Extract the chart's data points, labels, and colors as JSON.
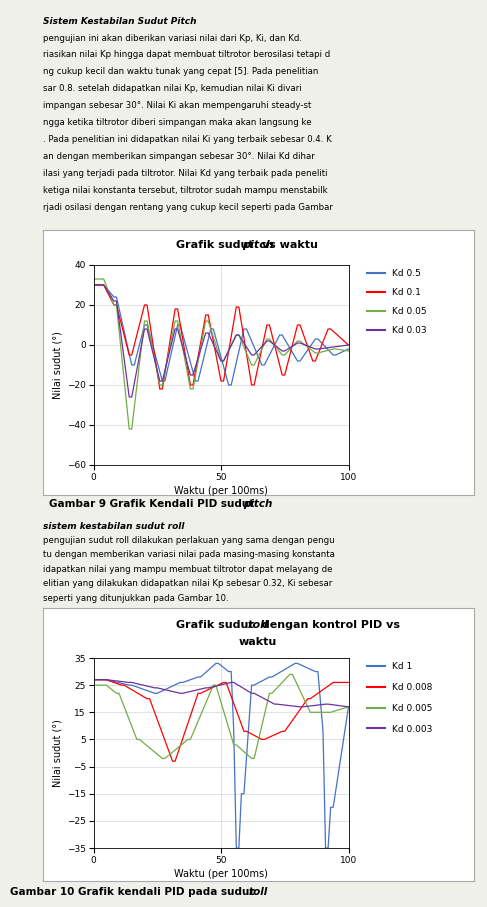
{
  "chart1": {
    "title_normal": "Grafik sudut ",
    "title_italic": "pitch",
    "title_end": " vs waktu",
    "xlabel": "Waktu (per 100ms)",
    "ylabel": "Nilai sudut (°)",
    "ylim": [
      -60,
      40
    ],
    "yticks": [
      -60,
      -40,
      -20,
      0,
      20,
      40
    ],
    "xlim": [
      0,
      100
    ],
    "xticks": [
      0,
      50,
      100
    ],
    "legend": [
      "Kd 0.5",
      "Kd 0.1",
      "Kd 0.05",
      "Kd 0.03"
    ],
    "colors": [
      "#4472C4",
      "#FF0000",
      "#70AD47",
      "#7030A0"
    ],
    "caption_normal": "Gambar 9 Grafik Kendali PID sudut ",
    "caption_italic": "pitch"
  },
  "chart2": {
    "title_line1_normal": "Grafik sudut ",
    "title_line1_italic": "roll",
    "title_line1_end": " dengan kontrol PID vs",
    "title_line2": "waktu",
    "xlabel": "Waktu (per 100ms)",
    "ylabel": "Nilai sudut (°)",
    "ylim": [
      -35,
      35
    ],
    "yticks": [
      -35,
      -25,
      -15,
      -5,
      5,
      15,
      25,
      35
    ],
    "xlim": [
      0,
      100
    ],
    "xticks": [
      0,
      50,
      100
    ],
    "legend": [
      "Kd 1",
      "Kd 0.008",
      "Kd 0.005",
      "Kd 0.003"
    ],
    "colors": [
      "#4472C4",
      "#FF0000",
      "#70AD47",
      "#7030A0"
    ],
    "caption_normal": "Gambar 10 Grafik kendali PID pada sudut ",
    "caption_italic": "roll"
  },
  "text_lines": [
    "Sistem Kestabilan Sudut Pitch",
    "pengujian ini akan diberikan variasi nilai dari Kp, Ki, dan Kd.",
    "riasikan nilai Kp hingga dapat membuat tiltrotor berosilasi tetapi d",
    "ng cukup kecil dan waktu tunak yang cepat [5]. Pada penelitian",
    "sar 0.8. setelah didapatkan nilai Kp, kemudian nilai Ki divari",
    "impangan sebesar 30°. Nilai Ki akan mempengaruhi steady-st",
    "ngga ketika tiltrotor diberi simpangan maka akan langsung ke",
    ". Pada penelitian ini didapatkan nilai Ki yang terbaik sebesar 0.4. K",
    "an dengan memberikan simpangan sebesar 30°. Nilai Kd dihar",
    "ilasi yang terjadi pada tiltrotor. Nilai Kd yang terbaik pada peneliti",
    "ketiga nilai konstanta tersebut, tiltrotor sudah mampu menstabilk",
    "rjadi osilasi dengan rentang yang cukup kecil seperti pada Gambar"
  ],
  "text2_lines": [
    "sistem kestabilan sudut roll",
    "pengujian sudut roll dilakukan perlakuan yang sama dengan pengu",
    "tu dengan memberikan variasi nilai pada masing-masing konstanta",
    "idapatkan nilai yang mampu membuat tiltrotor dapat melayang de",
    "elitian yang dilakukan didapatkan nilai Kp sebesar 0.32, Ki sebesar",
    "seperti yang ditunjukkan pada Gambar 10."
  ],
  "bg_color": "#f5f5f0",
  "chart_bg": "#ffffff"
}
